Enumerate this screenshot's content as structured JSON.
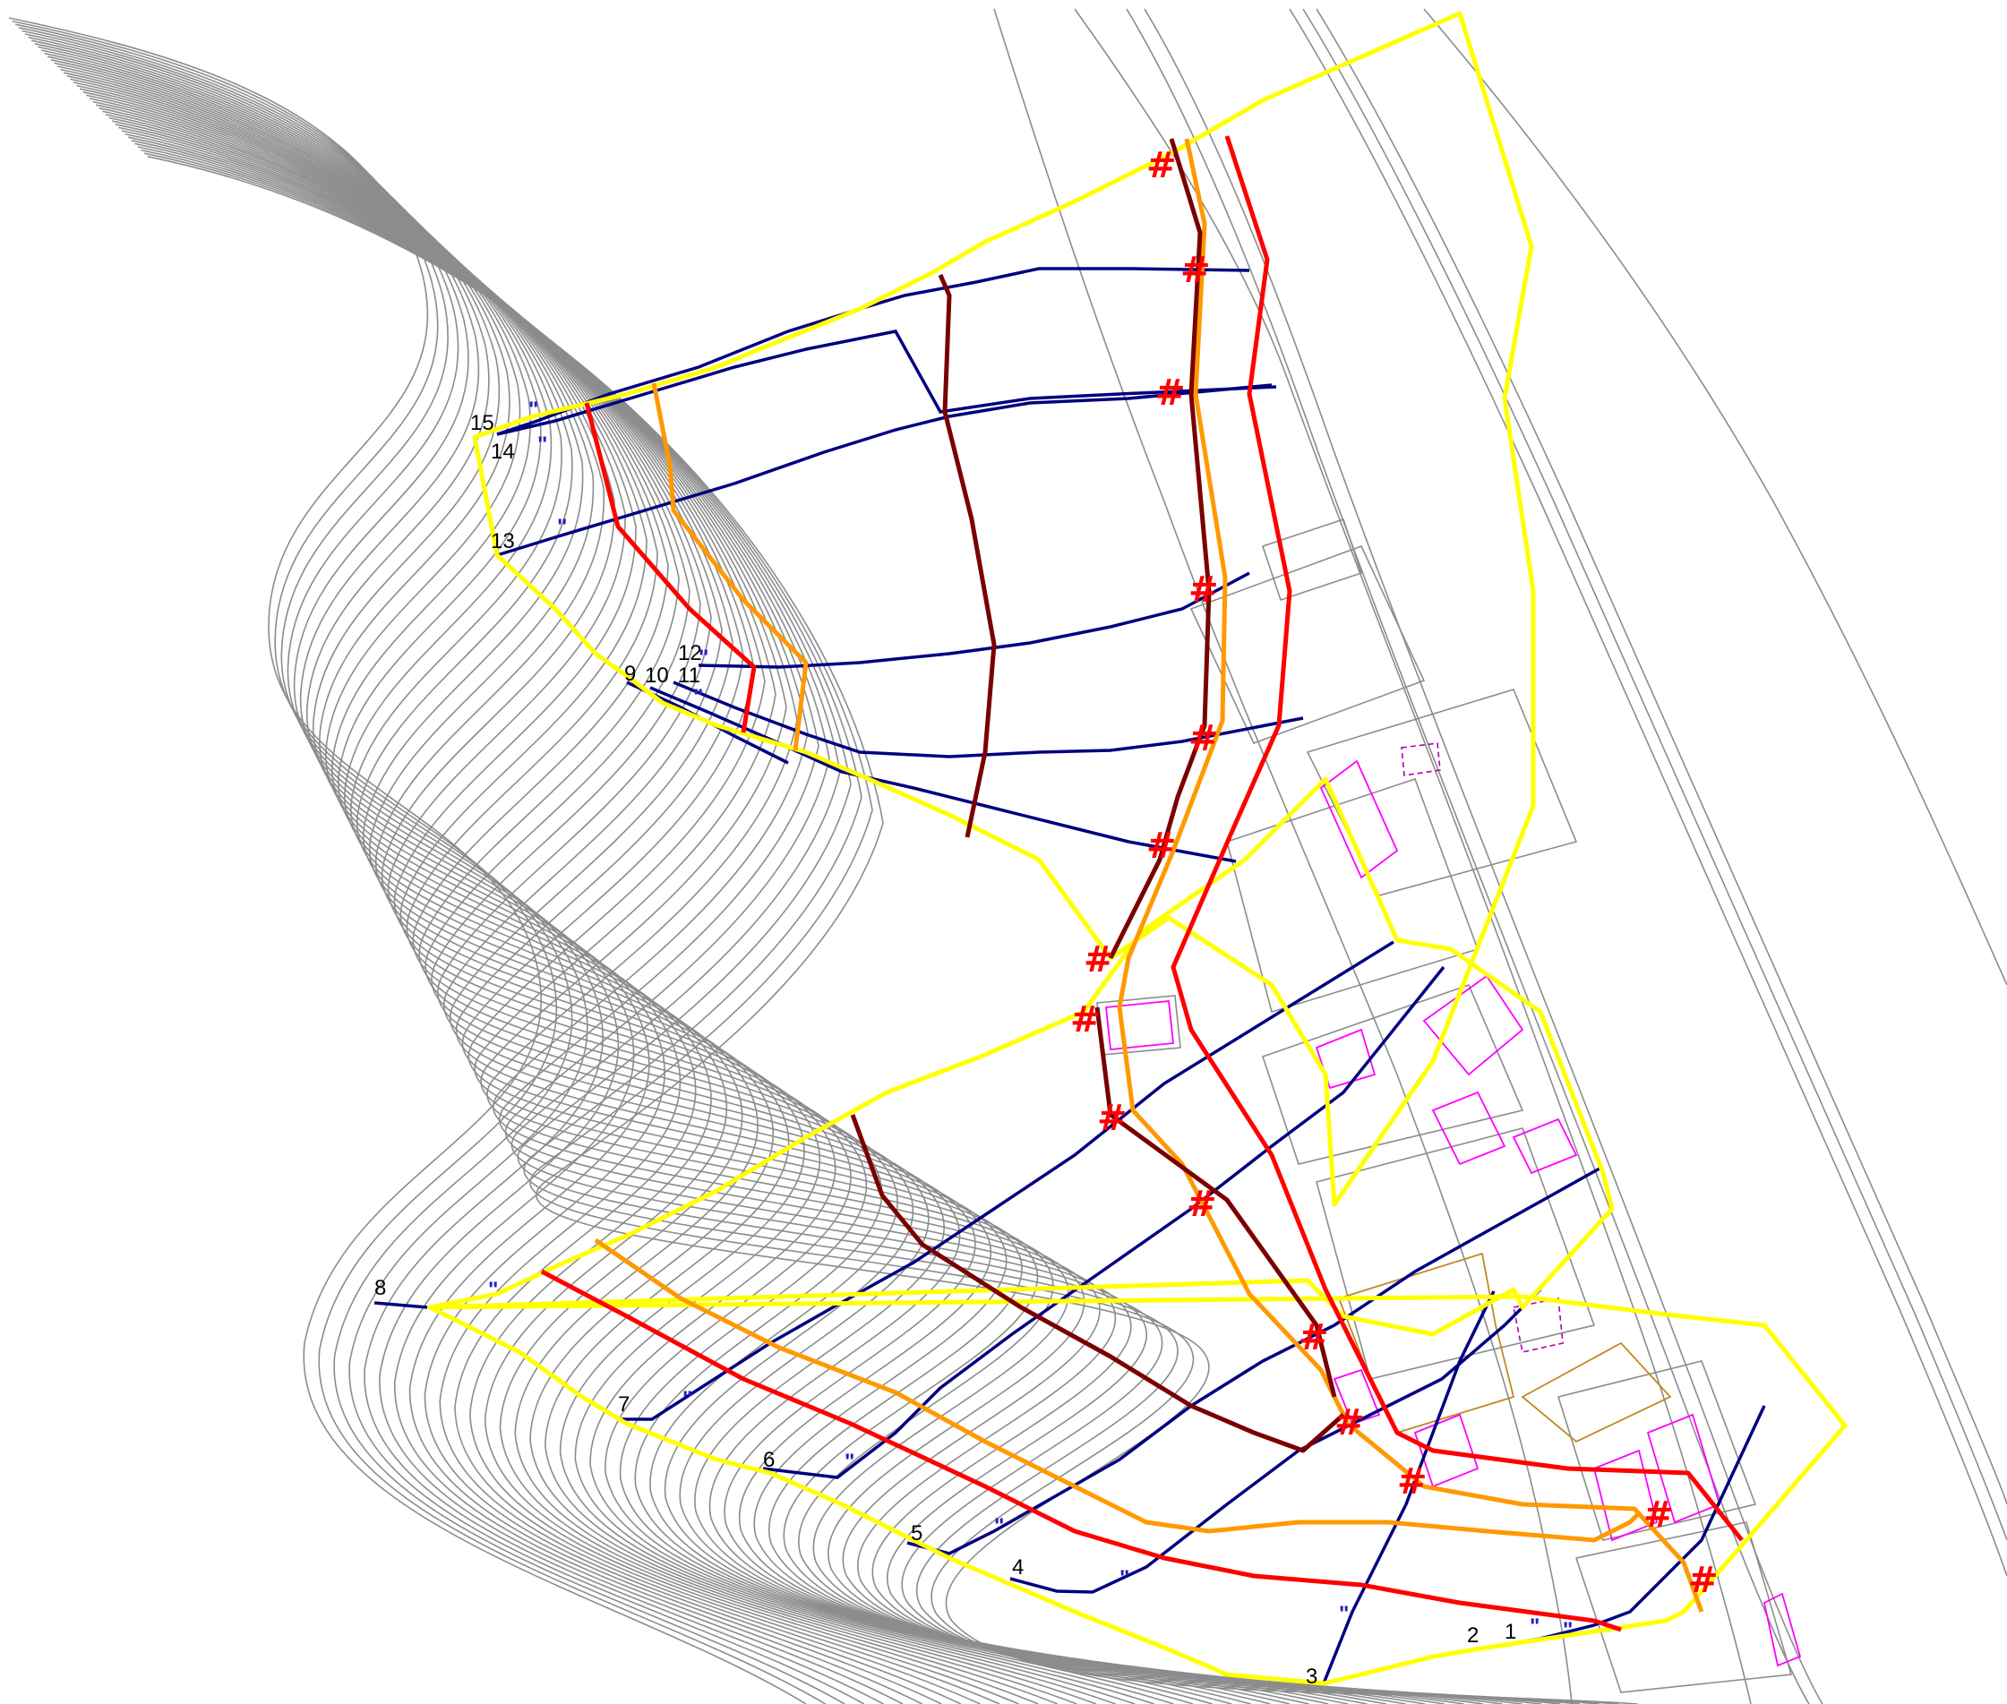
{
  "map": {
    "colors": {
      "boundary": "#ffff00",
      "section_line": "#000080",
      "red_line": "#ff0000",
      "orange_line": "#ff9900",
      "dark_line": "#7a0000",
      "contour": "#8c8c8c",
      "building": "#ff00ff",
      "marker": "#ff0000"
    },
    "section_labels": [
      "1",
      "2",
      "3",
      "4",
      "5",
      "6",
      "7",
      "8",
      "9",
      "10",
      "11",
      "12",
      "13",
      "14",
      "15"
    ],
    "tick_mark": "\"",
    "crossing_marker": "#"
  }
}
